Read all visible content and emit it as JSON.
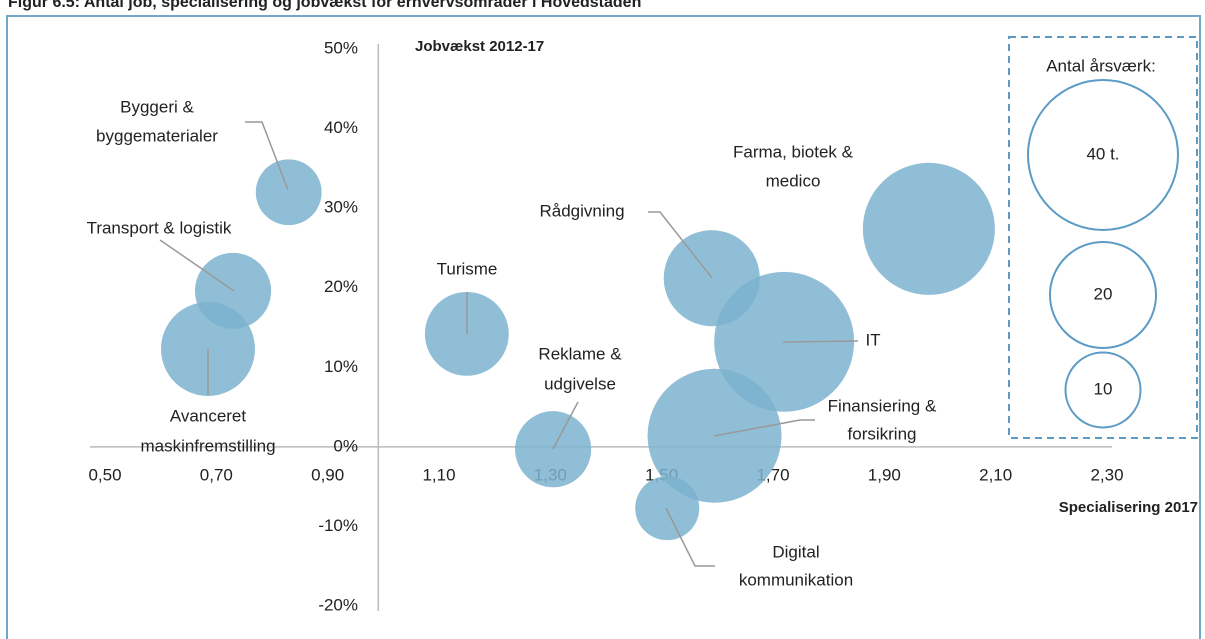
{
  "chart_data": {
    "type": "bubble",
    "title": "Figur 6.5: Antal job, specialisering og jobvækst for erhvervsområder i Hovedstaden",
    "xlabel": "Specialisering 2017",
    "ylabel": "Jobvækst 2012-17",
    "categories": [
      [
        "Byggeri &",
        "byggematerialer"
      ],
      [
        "Transport & logistik"
      ],
      [
        "Avanceret",
        "maskinfremstilling"
      ],
      [
        "Turisme"
      ],
      [
        "Reklame &",
        "udgivelse"
      ],
      [
        "Rådgivning"
      ],
      [
        "IT"
      ],
      [
        "Farma, biotek &",
        "medico"
      ],
      [
        "Finansiering &",
        "forsikring"
      ],
      [
        "Digital",
        "kommunikation"
      ]
    ],
    "x": [
      0.83,
      0.73,
      0.685,
      1.15,
      1.305,
      1.59,
      1.72,
      1.98,
      1.595,
      1.51
    ],
    "values": [
      32,
      19.6,
      12.3,
      14.2,
      -0.3,
      21.2,
      13.2,
      27.4,
      1.4,
      -7.7
    ],
    "sizes": [
      7.7,
      10.3,
      15.7,
      12.5,
      10.3,
      16.4,
      34.8,
      31,
      31.9,
      7.3
    ],
    "color": "#7db3cf",
    "xlim": [
      0.5,
      2.3
    ],
    "xticks": [
      {
        "value": 0.5,
        "label": "0,50"
      },
      {
        "value": 0.7,
        "label": "0,70"
      },
      {
        "value": 0.9,
        "label": "0,90"
      },
      {
        "value": 1.1,
        "label": "1,10"
      },
      {
        "value": 1.3,
        "label": "1,30"
      },
      {
        "value": 1.5,
        "label": "1,50"
      },
      {
        "value": 1.7,
        "label": "1,70"
      },
      {
        "value": 1.9,
        "label": "1,90"
      },
      {
        "value": 2.1,
        "label": "2,10"
      },
      {
        "value": 2.3,
        "label": "2,30"
      }
    ],
    "ylim": [
      -20,
      50
    ],
    "yticks": [
      {
        "value": -20,
        "label": "-20%"
      },
      {
        "value": -10,
        "label": "-10%"
      },
      {
        "value": 0,
        "label": "0%"
      },
      {
        "value": 10,
        "label": "10%"
      },
      {
        "value": 20,
        "label": "20%"
      },
      {
        "value": 30,
        "label": "30%"
      },
      {
        "value": 40,
        "label": "40%"
      },
      {
        "value": 50,
        "label": "50%"
      }
    ],
    "legend": {
      "title": "Antal årsværk:",
      "sizes": [
        {
          "value": 40,
          "label": "40 t."
        },
        {
          "value": 20,
          "label": "20"
        },
        {
          "value": 10,
          "label": "10"
        }
      ]
    }
  }
}
